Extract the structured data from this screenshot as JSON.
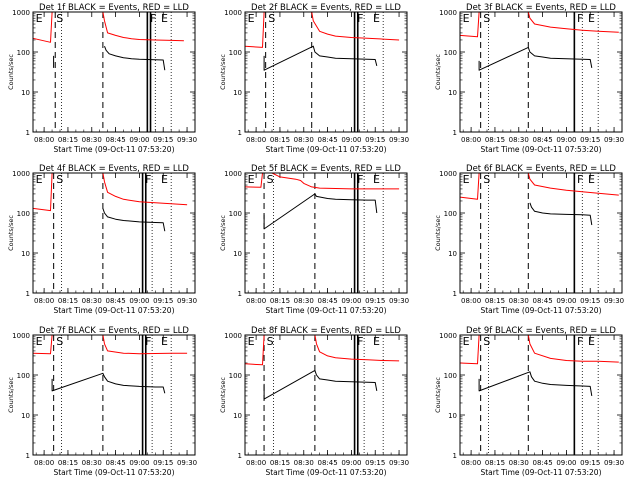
{
  "panel_ylabel": "Counts/sec",
  "panel_xlabel": "Start Time (09-Oct-11 07:53:20)",
  "x_tick_labels": [
    "08:00",
    "08:15",
    "08:30",
    "08:45",
    "09:00",
    "09:15",
    "09:30"
  ],
  "y_tick_labels": [
    "1",
    "10",
    "100",
    "1000"
  ],
  "colors": {
    "events": "#000000",
    "lld": "#ff0000"
  },
  "chart_data": [
    {
      "type": "line",
      "title": "Det 1f BLACK = Events, RED = LLD",
      "xlabel": "Start Time (09-Oct-11 07:53:20)",
      "ylabel": "Counts/sec",
      "xlim": [
        "07:53",
        "09:35"
      ],
      "ylim": [
        1,
        1000
      ],
      "yscale": "log",
      "markers": [
        {
          "label": "E",
          "x": "07:54"
        },
        {
          "label": "S",
          "x": "08:07"
        },
        {
          "label": "F",
          "x": "09:06"
        },
        {
          "label": "E",
          "x": "09:13"
        }
      ],
      "dashed_lines": [
        "08:07",
        "08:37"
      ],
      "dotted_lines": [
        "08:11",
        "09:10",
        "09:20"
      ],
      "solid_lines": [
        "09:05",
        "09:07"
      ],
      "series": [
        {
          "name": "LLD",
          "color": "red",
          "x": [
            "07:53",
            "08:04",
            "08:05",
            "08:07",
            "08:07",
            "08:37",
            "08:38",
            "08:40",
            "08:45",
            "08:50",
            "08:55",
            "09:00",
            "09:10",
            "09:20",
            "09:28"
          ],
          "y": [
            220,
            175,
            1000,
            1000,
            null,
            1000,
            600,
            300,
            260,
            230,
            215,
            205,
            200,
            195,
            190
          ]
        },
        {
          "name": "Events",
          "color": "black",
          "x": [
            "08:06",
            "08:06",
            "08:06",
            "08:07",
            "08:37",
            "08:38",
            "08:39",
            "08:41",
            "08:45",
            "08:50",
            "08:55",
            "09:00",
            "09:10",
            "09:15",
            "09:16"
          ],
          "y": [
            null,
            80,
            40,
            null,
            null,
            140,
            110,
            90,
            80,
            72,
            68,
            66,
            64,
            63,
            35
          ]
        }
      ]
    },
    {
      "type": "line",
      "title": "Det 2f BLACK = Events, RED = LLD",
      "xlabel": "Start Time (09-Oct-11 07:53:20)",
      "ylabel": "Counts/sec",
      "xlim": [
        "07:53",
        "09:35"
      ],
      "ylim": [
        1,
        1000
      ],
      "yscale": "log",
      "markers": [
        {
          "label": "E",
          "x": "07:54"
        },
        {
          "label": "S",
          "x": "08:07"
        },
        {
          "label": "F",
          "x": "09:03"
        },
        {
          "label": "E",
          "x": "09:13"
        }
      ],
      "dashed_lines": [
        "08:06",
        "08:35"
      ],
      "dotted_lines": [
        "08:11",
        "09:08",
        "09:20"
      ],
      "solid_lines": [
        "09:02",
        "09:04"
      ],
      "series": [
        {
          "name": "LLD",
          "color": "red",
          "x": [
            "07:53",
            "08:04",
            "08:05",
            "08:07",
            "08:35",
            "08:36",
            "08:40",
            "08:45",
            "08:50",
            "09:00",
            "09:10",
            "09:20",
            "09:30"
          ],
          "y": [
            140,
            130,
            1000,
            1000,
            1000,
            600,
            330,
            280,
            250,
            230,
            220,
            210,
            200
          ]
        },
        {
          "name": "Events",
          "color": "black",
          "x": [
            "08:05",
            "08:05",
            "08:36",
            "08:37",
            "08:40",
            "08:45",
            "08:50",
            "09:00",
            "09:10",
            "09:15",
            "09:16"
          ],
          "y": [
            80,
            35,
            140,
            100,
            80,
            75,
            70,
            68,
            66,
            65,
            45
          ]
        }
      ]
    },
    {
      "type": "line",
      "title": "Det 3f BLACK = Events, RED = LLD",
      "xlabel": "Start Time (09-Oct-11 07:53:20)",
      "ylabel": "Counts/sec",
      "xlim": [
        "07:53",
        "09:35"
      ],
      "ylim": [
        1,
        1000
      ],
      "yscale": "log",
      "markers": [
        {
          "label": "E",
          "x": "07:54"
        },
        {
          "label": "S",
          "x": "08:07"
        },
        {
          "label": "F",
          "x": "09:06"
        },
        {
          "label": "E",
          "x": "09:13"
        }
      ],
      "dashed_lines": [
        "08:06",
        "08:36"
      ],
      "dotted_lines": [
        "08:11",
        "09:10",
        "09:20"
      ],
      "solid_lines": [
        "09:05"
      ],
      "series": [
        {
          "name": "LLD",
          "color": "red",
          "x": [
            "07:53",
            "08:04",
            "08:05",
            "08:07",
            "08:36",
            "08:37",
            "08:40",
            "08:50",
            "09:00",
            "09:10",
            "09:20",
            "09:33"
          ],
          "y": [
            260,
            240,
            1000,
            1000,
            1000,
            700,
            500,
            420,
            380,
            350,
            330,
            310
          ]
        },
        {
          "name": "Events",
          "color": "black",
          "x": [
            "08:05",
            "08:05",
            "08:36",
            "08:37",
            "08:40",
            "08:45",
            "08:50",
            "09:00",
            "09:10",
            "09:15",
            "09:16"
          ],
          "y": [
            60,
            35,
            130,
            100,
            80,
            75,
            70,
            68,
            66,
            65,
            40
          ]
        }
      ]
    },
    {
      "type": "line",
      "title": "Det 4f BLACK = Events, RED = LLD",
      "xlabel": "Start Time (09-Oct-11 07:53:20)",
      "ylabel": "Counts/sec",
      "xlim": [
        "07:53",
        "09:35"
      ],
      "ylim": [
        1,
        1000
      ],
      "yscale": "log",
      "markers": [
        {
          "label": "E",
          "x": "07:54"
        },
        {
          "label": "S",
          "x": "08:07"
        },
        {
          "label": "F",
          "x": "09:03"
        },
        {
          "label": "E",
          "x": "09:13"
        }
      ],
      "dashed_lines": [
        "08:06",
        "08:37"
      ],
      "dotted_lines": [
        "08:11",
        "09:08",
        "09:20"
      ],
      "solid_lines": [
        "09:02",
        "09:04"
      ],
      "series": [
        {
          "name": "LLD",
          "color": "red",
          "x": [
            "07:53",
            "08:04",
            "08:05",
            "08:07",
            "08:37",
            "08:38",
            "08:40",
            "08:45",
            "08:50",
            "09:00",
            "09:10",
            "09:20",
            "09:30"
          ],
          "y": [
            130,
            115,
            1000,
            1000,
            1000,
            600,
            330,
            260,
            220,
            190,
            180,
            170,
            160
          ]
        },
        {
          "name": "Events",
          "color": "black",
          "x": [
            "08:37",
            "08:38",
            "08:40",
            "08:45",
            "08:50",
            "09:00",
            "09:10",
            "09:15",
            "09:16"
          ],
          "y": [
            130,
            100,
            80,
            70,
            65,
            60,
            58,
            57,
            35
          ]
        }
      ]
    },
    {
      "type": "line",
      "title": "Det 5f BLACK = Events, RED = LLD",
      "xlabel": "Start Time (09-Oct-11 07:53:20)",
      "ylabel": "Counts/sec",
      "xlim": [
        "07:53",
        "09:35"
      ],
      "ylim": [
        1,
        1000
      ],
      "yscale": "log",
      "markers": [
        {
          "label": "E",
          "x": "07:54"
        },
        {
          "label": "S",
          "x": "08:06"
        },
        {
          "label": "F",
          "x": "09:03"
        },
        {
          "label": "E",
          "x": "09:13"
        }
      ],
      "dashed_lines": [
        "08:05",
        "08:37"
      ],
      "dotted_lines": [
        "08:11",
        "09:08",
        "09:20"
      ],
      "solid_lines": [
        "09:02",
        "09:04"
      ],
      "series": [
        {
          "name": "LLD",
          "color": "red",
          "x": [
            "07:53",
            "08:03",
            "08:04",
            "08:10",
            "08:15",
            "08:25",
            "08:28",
            "08:30",
            "08:35",
            "08:40",
            "08:50",
            "09:00",
            "09:10",
            "09:20",
            "09:30"
          ],
          "y": [
            450,
            440,
            1000,
            1000,
            800,
            700,
            650,
            550,
            450,
            420,
            410,
            400,
            400,
            400,
            400
          ]
        },
        {
          "name": "Events",
          "color": "black",
          "x": [
            "08:05",
            "08:05",
            "08:37",
            "08:38",
            "08:45",
            "08:50",
            "09:00",
            "09:10",
            "09:15",
            "09:16"
          ],
          "y": [
            90,
            40,
            300,
            260,
            230,
            220,
            215,
            210,
            210,
            100
          ]
        }
      ]
    },
    {
      "type": "line",
      "title": "Det 6f BLACK = Events, RED = LLD",
      "xlabel": "Start Time (09-Oct-11 07:53:20)",
      "ylabel": "Counts/sec",
      "xlim": [
        "07:53",
        "09:35"
      ],
      "ylim": [
        1,
        1000
      ],
      "yscale": "log",
      "markers": [
        {
          "label": "E",
          "x": "07:54"
        },
        {
          "label": "S",
          "x": "08:07"
        },
        {
          "label": "F",
          "x": "09:06"
        },
        {
          "label": "E",
          "x": "09:13"
        }
      ],
      "dashed_lines": [
        "08:06",
        "08:36"
      ],
      "dotted_lines": [
        "08:11",
        "09:10",
        "09:20"
      ],
      "solid_lines": [
        "09:05"
      ],
      "series": [
        {
          "name": "LLD",
          "color": "red",
          "x": [
            "07:53",
            "08:04",
            "08:05",
            "08:07",
            "08:36",
            "08:37",
            "08:40",
            "08:50",
            "09:00",
            "09:10",
            "09:20",
            "09:33"
          ],
          "y": [
            250,
            220,
            1000,
            1000,
            1000,
            700,
            500,
            420,
            370,
            340,
            310,
            280
          ]
        },
        {
          "name": "Events",
          "color": "black",
          "x": [
            "08:37",
            "08:38",
            "08:40",
            "08:45",
            "08:50",
            "09:00",
            "09:10",
            "09:15",
            "09:16"
          ],
          "y": [
            180,
            140,
            110,
            100,
            95,
            92,
            90,
            88,
            50
          ]
        }
      ]
    },
    {
      "type": "line",
      "title": "Det 7f BLACK = Events, RED = LLD",
      "xlabel": "Start Time (09-Oct-11 07:53:20)",
      "ylabel": "Counts/sec",
      "xlim": [
        "07:53",
        "09:35"
      ],
      "ylim": [
        1,
        1000
      ],
      "yscale": "log",
      "markers": [
        {
          "label": "E",
          "x": "07:54"
        },
        {
          "label": "S",
          "x": "08:07"
        },
        {
          "label": "F",
          "x": "09:03"
        },
        {
          "label": "E",
          "x": "09:13"
        }
      ],
      "dashed_lines": [
        "08:06",
        "08:37"
      ],
      "dotted_lines": [
        "08:11",
        "09:08",
        "09:20"
      ],
      "solid_lines": [
        "09:02",
        "09:04"
      ],
      "series": [
        {
          "name": "LLD",
          "color": "red",
          "x": [
            "07:53",
            "08:04",
            "08:05",
            "08:07",
            "08:37",
            "08:38",
            "08:40",
            "08:50",
            "09:00",
            "09:10",
            "09:20",
            "09:30"
          ],
          "y": [
            350,
            340,
            1000,
            1000,
            1000,
            600,
            400,
            350,
            340,
            345,
            350,
            350
          ]
        },
        {
          "name": "Events",
          "color": "black",
          "x": [
            "08:05",
            "08:05",
            "08:37",
            "08:38",
            "08:40",
            "08:45",
            "08:50",
            "09:00",
            "09:10",
            "09:15",
            "09:16"
          ],
          "y": [
            80,
            40,
            110,
            90,
            70,
            60,
            55,
            52,
            50,
            50,
            35
          ]
        }
      ]
    },
    {
      "type": "line",
      "title": "Det 8f BLACK = Events, RED = LLD",
      "xlabel": "Start Time (09-Oct-11 07:53:20)",
      "ylabel": "Counts/sec",
      "xlim": [
        "07:53",
        "09:35"
      ],
      "ylim": [
        1,
        1000
      ],
      "yscale": "log",
      "markers": [
        {
          "label": "E",
          "x": "07:54"
        },
        {
          "label": "S",
          "x": "08:06"
        },
        {
          "label": "F",
          "x": "09:03"
        },
        {
          "label": "E",
          "x": "09:13"
        }
      ],
      "dashed_lines": [
        "08:05",
        "08:37"
      ],
      "dotted_lines": [
        "08:11",
        "09:08",
        "09:20"
      ],
      "solid_lines": [
        "09:02",
        "09:04"
      ],
      "series": [
        {
          "name": "LLD",
          "color": "red",
          "x": [
            "07:53",
            "08:04",
            "08:05",
            "08:07",
            "08:37",
            "08:38",
            "08:40",
            "08:45",
            "08:50",
            "09:00",
            "09:10",
            "09:20",
            "09:30"
          ],
          "y": [
            190,
            180,
            1000,
            1000,
            1000,
            600,
            380,
            300,
            270,
            250,
            240,
            230,
            225
          ]
        },
        {
          "name": "Events",
          "color": "black",
          "x": [
            "08:05",
            "08:05",
            "08:37",
            "08:38",
            "08:40",
            "08:45",
            "08:50",
            "09:00",
            "09:10",
            "09:15",
            "09:16"
          ],
          "y": [
            60,
            25,
            130,
            100,
            80,
            75,
            70,
            68,
            66,
            65,
            40
          ]
        }
      ]
    },
    {
      "type": "line",
      "title": "Det 9f BLACK = Events, RED = LLD",
      "xlabel": "Start Time (09-Oct-11 07:53:20)",
      "ylabel": "Counts/sec",
      "xlim": [
        "07:53",
        "09:35"
      ],
      "ylim": [
        1,
        1000
      ],
      "yscale": "log",
      "markers": [
        {
          "label": "E",
          "x": "07:54"
        },
        {
          "label": "S",
          "x": "08:07"
        },
        {
          "label": "F",
          "x": "09:06"
        },
        {
          "label": "E",
          "x": "09:13"
        }
      ],
      "dashed_lines": [
        "08:06",
        "08:36"
      ],
      "dotted_lines": [
        "08:11",
        "09:10",
        "09:20"
      ],
      "solid_lines": [
        "09:05"
      ],
      "series": [
        {
          "name": "LLD",
          "color": "red",
          "x": [
            "07:53",
            "08:04",
            "08:05",
            "08:07",
            "08:36",
            "08:37",
            "08:40",
            "08:50",
            "09:00",
            "09:10",
            "09:20",
            "09:33"
          ],
          "y": [
            200,
            190,
            1000,
            1000,
            1000,
            600,
            350,
            260,
            230,
            220,
            220,
            210
          ]
        },
        {
          "name": "Events",
          "color": "black",
          "x": [
            "08:05",
            "08:05",
            "08:37",
            "08:38",
            "08:40",
            "08:45",
            "08:50",
            "09:00",
            "09:10",
            "09:15",
            "09:16"
          ],
          "y": [
            80,
            40,
            120,
            90,
            70,
            62,
            58,
            55,
            53,
            52,
            30
          ]
        }
      ]
    }
  ]
}
